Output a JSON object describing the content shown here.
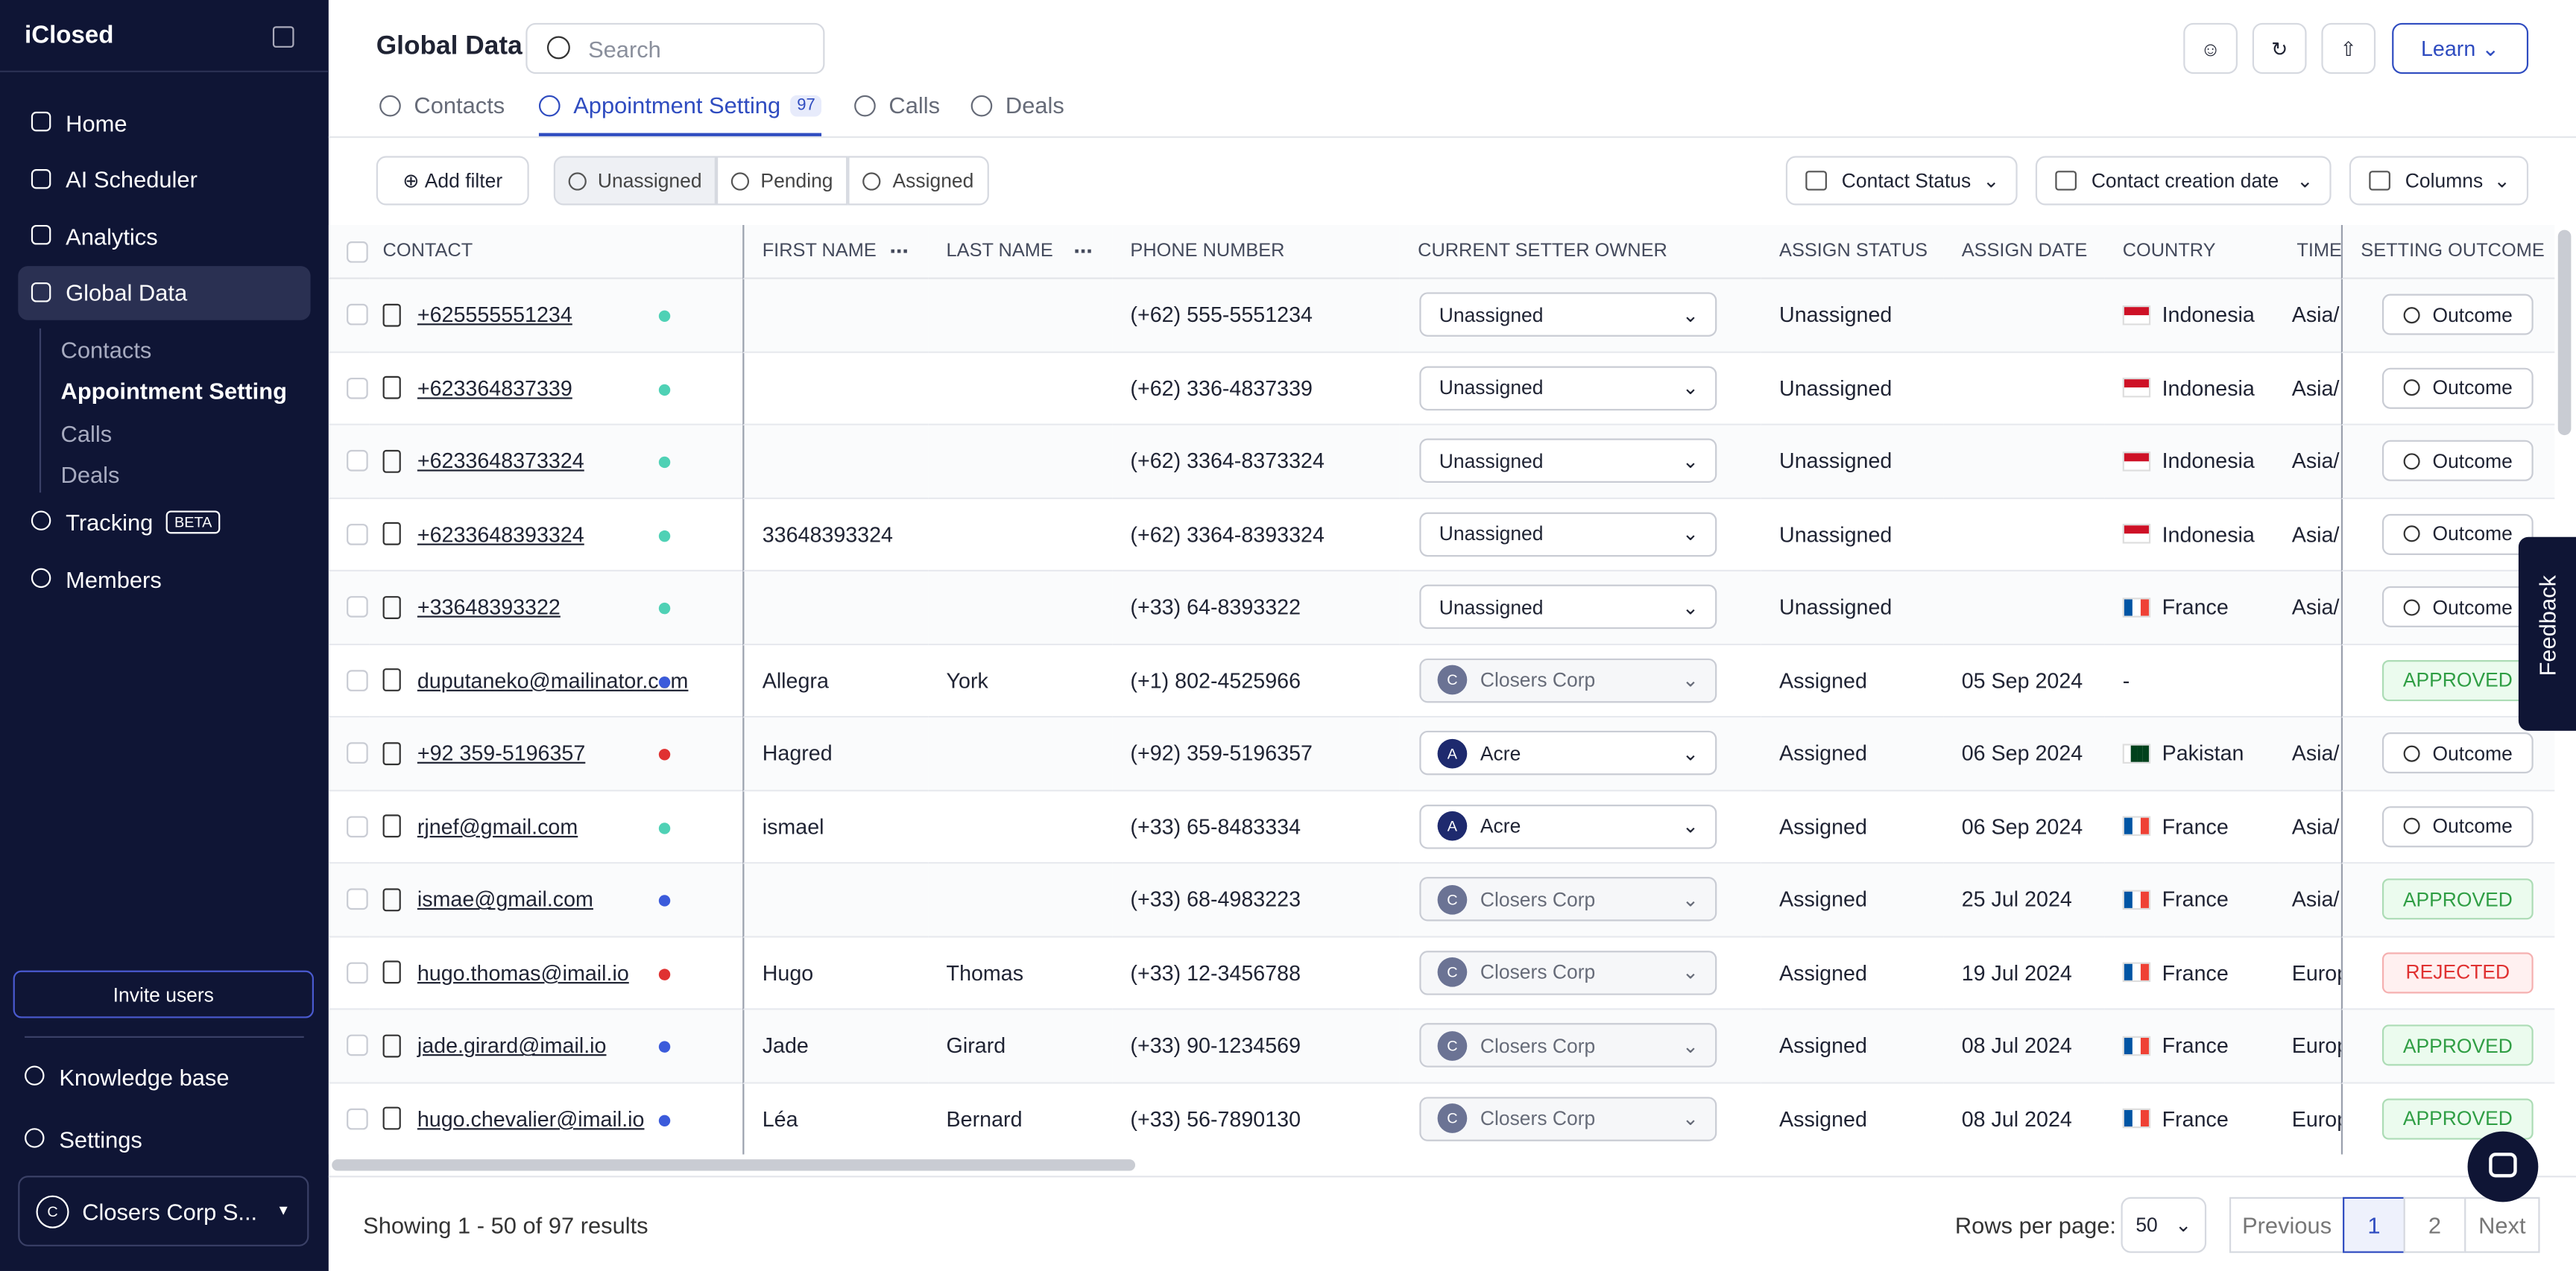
{
  "sidebar": {
    "brand": "iClosed",
    "nav": [
      "Home",
      "AI Scheduler",
      "Analytics",
      "Global Data"
    ],
    "active_nav": 3,
    "subnav": [
      "Contacts",
      "Appointment Setting",
      "Calls",
      "Deals"
    ],
    "active_subnav": 1,
    "tracking": "Tracking",
    "badge": "BETA",
    "members": "Members",
    "invite": "Invite users",
    "knowledge": "Knowledge base",
    "settings": "Settings",
    "workspace": "Closers Corp S...",
    "workspace_initial": "C"
  },
  "header": {
    "title": "Global Data",
    "search": "Search",
    "learn": "Learn",
    "tabs": [
      "Contacts",
      "Appointment Setting",
      "Calls",
      "Deals"
    ],
    "active_tab": 1,
    "tab_count": 97
  },
  "filters": {
    "add": "Add filter",
    "segments": [
      "Unassigned",
      "Pending",
      "Assigned"
    ],
    "dropdowns": [
      "Contact Status",
      "Contact creation date",
      "Columns"
    ]
  },
  "table": {
    "columns": [
      "CONTACT",
      "FIRST NAME",
      "LAST NAME",
      "PHONE NUMBER",
      "CURRENT SETTER OWNER",
      "ASSIGN STATUS",
      "ASSIGN DATE",
      "COUNTRY",
      "TIME",
      "SETTING OUTCOME"
    ],
    "rows": [
      {
        "contact": "+625555551234",
        "dot": "#4fd1b5",
        "first": null,
        "last": null,
        "phone": "(+62) 555-5551234",
        "owner": {
          "name": "Unassigned"
        },
        "status": "Unassigned",
        "date": null,
        "country": "Indonesia",
        "flag": {
          "colors": [
            "#ce1126",
            "#ffffff"
          ],
          "stripes": "horizontal"
        },
        "time": "Asia/",
        "outcome": {
          "label": "Outcome"
        }
      },
      {
        "contact": "+623364837339",
        "dot": "#4fd1b5",
        "first": null,
        "last": null,
        "phone": "(+62) 336-4837339",
        "owner": {
          "name": "Unassigned"
        },
        "status": "Unassigned",
        "date": null,
        "country": "Indonesia",
        "flag": {
          "colors": [
            "#ce1126",
            "#ffffff"
          ],
          "stripes": "horizontal"
        },
        "time": "Asia/",
        "outcome": {
          "label": "Outcome"
        }
      },
      {
        "contact": "+6233648373324",
        "dot": "#4fd1b5",
        "first": null,
        "last": null,
        "phone": "(+62) 3364-8373324",
        "owner": {
          "name": "Unassigned"
        },
        "status": "Unassigned",
        "date": null,
        "country": "Indonesia",
        "flag": {
          "colors": [
            "#ce1126",
            "#ffffff"
          ],
          "stripes": "horizontal"
        },
        "time": "Asia/",
        "outcome": {
          "label": "Outcome"
        }
      },
      {
        "contact": "+6233648393324",
        "dot": "#4fd1b5",
        "first": "33648393324",
        "last": null,
        "phone": "(+62) 3364-8393324",
        "owner": {
          "name": "Unassigned"
        },
        "status": "Unassigned",
        "date": null,
        "country": "Indonesia",
        "flag": {
          "colors": [
            "#ce1126",
            "#ffffff"
          ],
          "stripes": "horizontal"
        },
        "time": "Asia/",
        "outcome": {
          "label": "Outcome"
        }
      },
      {
        "contact": "+33648393322",
        "dot": "#4fd1b5",
        "first": null,
        "last": null,
        "phone": "(+33) 64-8393322",
        "owner": {
          "name": "Unassigned"
        },
        "status": "Unassigned",
        "date": null,
        "country": "France",
        "flag": {
          "colors": [
            "#0055a4",
            "#ffffff",
            "#ef4135"
          ],
          "stripes": "vertical"
        },
        "time": "Asia/",
        "outcome": {
          "label": "Outcome"
        }
      },
      {
        "contact": "duputaneko@mailinator.com",
        "dot": "#3b5bdb",
        "first": "Allegra",
        "last": "York",
        "phone": "(+1) 802-4525966",
        "owner": {
          "initial": "C",
          "name": "Closers Corp",
          "locked": true
        },
        "status": "Assigned",
        "date": "05 Sep 2024",
        "country": "-",
        "flag": null,
        "time": null,
        "outcome": {
          "label": "APPROVED",
          "badge": true,
          "color": "#2f9e44",
          "bg": "#ebfbee"
        }
      },
      {
        "contact": "+92 359-5196357",
        "dot": "#e03131",
        "first": "Hagred",
        "last": null,
        "phone": "(+92) 359-5196357",
        "owner": {
          "initial": "A",
          "name": "Acre",
          "locked": false
        },
        "status": "Assigned",
        "date": "06 Sep 2024",
        "country": "Pakistan",
        "flag": {
          "colors": [
            "#ffffff",
            "#01411c",
            "#01411c",
            "#01411c"
          ],
          "stripes": "vertical"
        },
        "time": "Asia/",
        "outcome": {
          "label": "Outcome"
        }
      },
      {
        "contact": "rjnef@gmail.com",
        "dot": "#4fd1b5",
        "first": "ismael",
        "last": null,
        "phone": "(+33) 65-8483334",
        "owner": {
          "initial": "A",
          "name": "Acre",
          "locked": false
        },
        "status": "Assigned",
        "date": "06 Sep 2024",
        "country": "France",
        "flag": {
          "colors": [
            "#0055a4",
            "#ffffff",
            "#ef4135"
          ],
          "stripes": "vertical"
        },
        "time": "Asia/",
        "outcome": {
          "label": "Outcome"
        }
      },
      {
        "contact": "ismae@gmail.com",
        "dot": "#3b5bdb",
        "first": null,
        "last": null,
        "phone": "(+33) 68-4983223",
        "owner": {
          "initial": "C",
          "name": "Closers Corp",
          "locked": true
        },
        "status": "Assigned",
        "date": "25 Jul 2024",
        "country": "France",
        "flag": {
          "colors": [
            "#0055a4",
            "#ffffff",
            "#ef4135"
          ],
          "stripes": "vertical"
        },
        "time": "Asia/",
        "outcome": {
          "label": "APPROVED",
          "badge": true,
          "color": "#2f9e44",
          "bg": "#ebfbee"
        }
      },
      {
        "contact": "hugo.thomas@imail.io",
        "dot": "#e03131",
        "first": "Hugo",
        "last": "Thomas",
        "phone": "(+33) 12-3456788",
        "owner": {
          "initial": "C",
          "name": "Closers Corp",
          "locked": true
        },
        "status": "Assigned",
        "date": "19 Jul 2024",
        "country": "France",
        "flag": {
          "colors": [
            "#0055a4",
            "#ffffff",
            "#ef4135"
          ],
          "stripes": "vertical"
        },
        "time": "Europ",
        "outcome": {
          "label": "REJECTED",
          "badge": true,
          "color": "#e03131",
          "bg": "#fff0f0"
        }
      },
      {
        "contact": "jade.girard@imail.io",
        "dot": "#3b5bdb",
        "first": "Jade",
        "last": "Girard",
        "phone": "(+33) 90-1234569",
        "owner": {
          "initial": "C",
          "name": "Closers Corp",
          "locked": true
        },
        "status": "Assigned",
        "date": "08 Jul 2024",
        "country": "France",
        "flag": {
          "colors": [
            "#0055a4",
            "#ffffff",
            "#ef4135"
          ],
          "stripes": "vertical"
        },
        "time": "Europ",
        "outcome": {
          "label": "APPROVED",
          "badge": true,
          "color": "#2f9e44",
          "bg": "#ebfbee"
        }
      },
      {
        "contact": "hugo.chevalier@imail.io",
        "dot": "#3b5bdb",
        "first": "Léa",
        "last": "Bernard",
        "phone": "(+33) 56-7890130",
        "owner": {
          "initial": "C",
          "name": "Closers Corp",
          "locked": true
        },
        "status": "Assigned",
        "date": "08 Jul 2024",
        "country": "France",
        "flag": {
          "colors": [
            "#0055a4",
            "#ffffff",
            "#ef4135"
          ],
          "stripes": "vertical"
        },
        "time": "Europ",
        "outcome": {
          "label": "APPROVED",
          "badge": true,
          "color": "#2f9e44",
          "bg": "#ebfbee"
        }
      }
    ]
  },
  "footer": {
    "summary": "Showing 1 - 50 of 97 results",
    "rows_label": "Rows per page:",
    "rows_value": 50,
    "prev": "Previous",
    "pages": [
      1,
      2
    ],
    "current_page": 1,
    "next": "Next"
  },
  "feedback": "Feedback"
}
